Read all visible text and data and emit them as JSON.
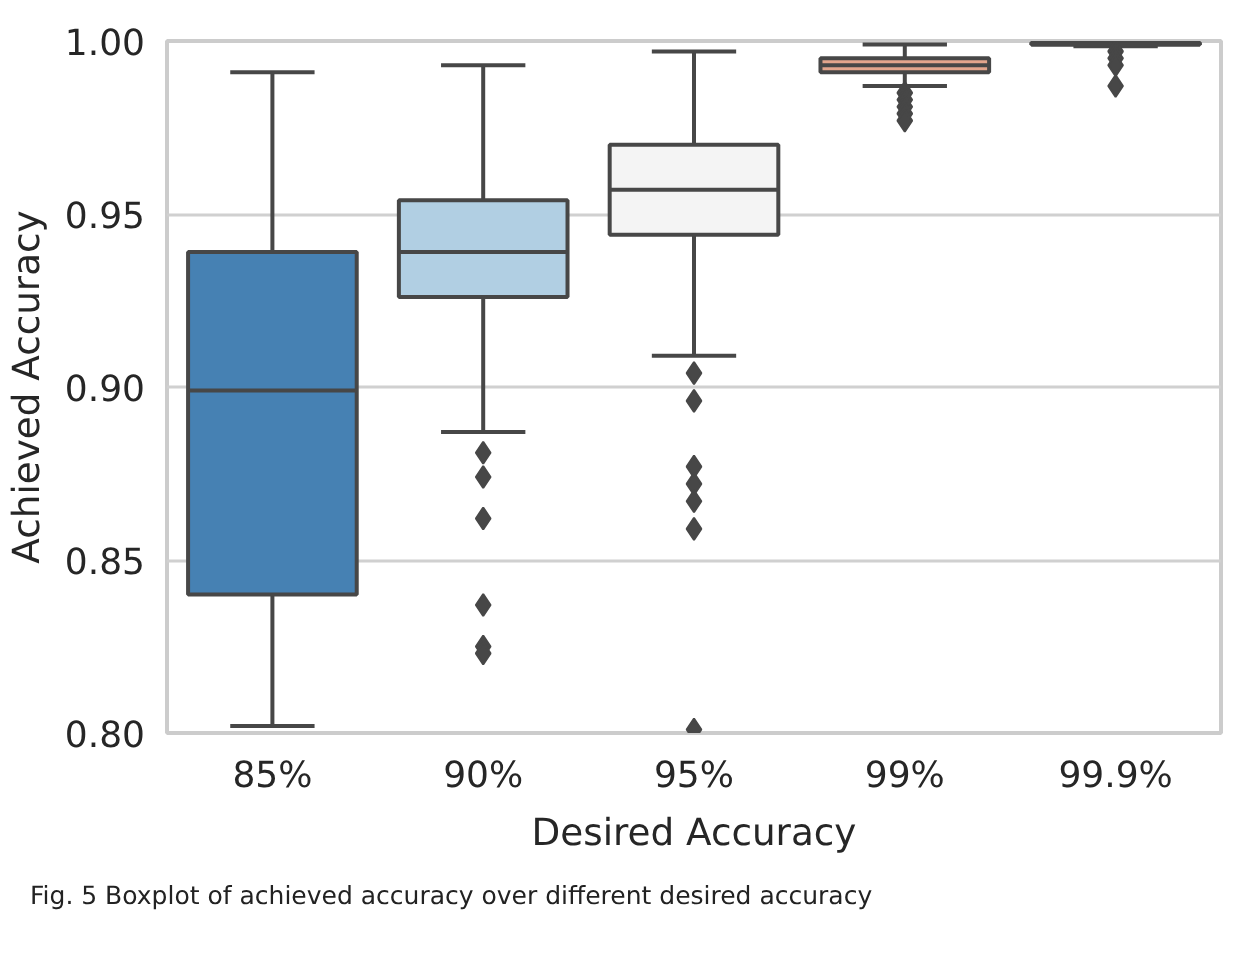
{
  "chart_data": {
    "type": "box",
    "xlabel": "Desired Accuracy",
    "ylabel": "Achieved Accuracy",
    "categories": [
      "85%",
      "90%",
      "95%",
      "99%",
      "99.9%"
    ],
    "colors": [
      "#4681b3",
      "#b1cfe3",
      "#f4f4f4",
      "#e3a58c",
      "#c2543f"
    ],
    "boxes": [
      {
        "low": 0.802,
        "q1": 0.84,
        "median": 0.899,
        "q3": 0.939,
        "high": 0.991
      },
      {
        "low": 0.887,
        "q1": 0.926,
        "median": 0.939,
        "q3": 0.954,
        "high": 0.993,
        "outliers": [
          0.881,
          0.874,
          0.862,
          0.837,
          0.825,
          0.823
        ]
      },
      {
        "low": 0.909,
        "q1": 0.944,
        "median": 0.957,
        "q3": 0.97,
        "high": 0.997,
        "outliers": [
          0.904,
          0.896,
          0.877,
          0.872,
          0.867,
          0.859,
          0.801
        ]
      },
      {
        "low": 0.987,
        "q1": 0.991,
        "median": 0.993,
        "q3": 0.995,
        "high": 0.999,
        "outliers": [
          0.985,
          0.983,
          0.981,
          0.979,
          0.977
        ]
      },
      {
        "low": 0.9985,
        "q1": 0.999,
        "median": 0.999,
        "q3": 0.9995,
        "high": 1.0,
        "outliers": [
          0.997,
          0.995,
          0.993,
          0.987
        ]
      }
    ],
    "ylim": [
      0.8,
      1.0
    ],
    "yticks": [
      {
        "value": 0.8,
        "label": "0.80"
      },
      {
        "value": 0.85,
        "label": "0.85"
      },
      {
        "value": 0.9,
        "label": "0.90"
      },
      {
        "value": 0.95,
        "label": "0.95"
      },
      {
        "value": 1.0,
        "label": "1.00"
      }
    ],
    "grid": "y",
    "marker": "diamond",
    "annotations": [
      "Fig. 5 Boxplot of achieved accuracy over different desired accuracy"
    ]
  }
}
